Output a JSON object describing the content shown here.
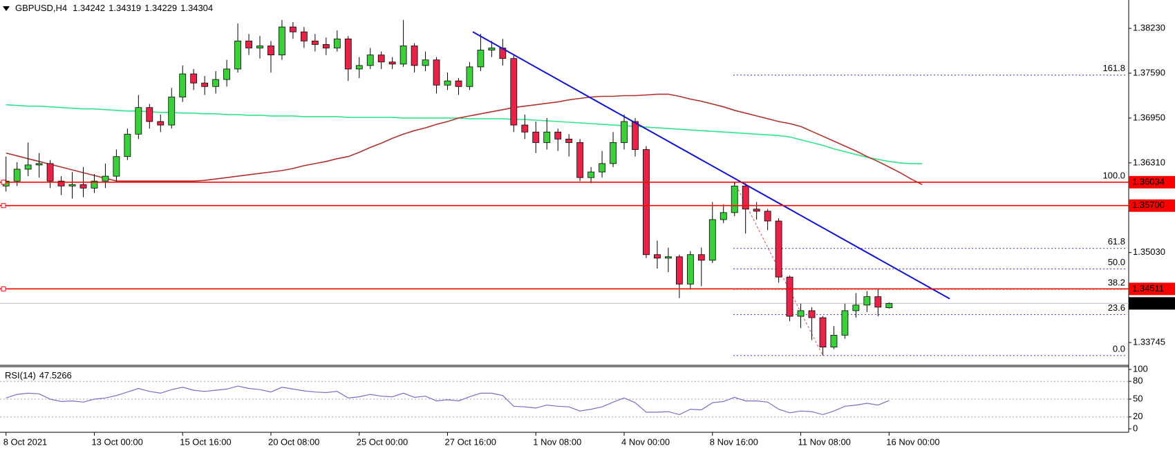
{
  "chart_data": {
    "type": "candlestick",
    "symbol": "GBPUSD,H4",
    "categories": [
      "8 Oct 2021",
      null,
      null,
      null,
      null,
      null,
      null,
      null,
      "13 Oct 00:00",
      null,
      null,
      null,
      null,
      null,
      null,
      null,
      "15 Oct 16:00",
      null,
      null,
      null,
      null,
      null,
      null,
      null,
      "20 Oct 08:00",
      null,
      null,
      null,
      null,
      null,
      null,
      null,
      "25 Oct 00:00",
      null,
      null,
      null,
      null,
      null,
      null,
      null,
      "27 Oct 16:00",
      null,
      null,
      null,
      null,
      null,
      null,
      null,
      "1 Nov 08:00",
      null,
      null,
      null,
      null,
      null,
      null,
      null,
      "4 Nov 00:00",
      null,
      null,
      null,
      null,
      null,
      null,
      null,
      "8 Nov 16:00",
      null,
      null,
      null,
      null,
      null,
      null,
      null,
      "11 Nov 08:00",
      null,
      null,
      null,
      null,
      null,
      null,
      null,
      "16 Nov 00:00",
      null,
      null,
      null
    ],
    "candles": [
      [
        1.3598,
        1.364,
        1.359,
        1.3605
      ],
      [
        1.3605,
        1.3632,
        1.3598,
        1.3622
      ],
      [
        1.3622,
        1.366,
        1.3612,
        1.3628
      ],
      [
        1.3628,
        1.3645,
        1.361,
        1.363
      ],
      [
        1.363,
        1.3635,
        1.3595,
        1.3605
      ],
      [
        1.3605,
        1.3612,
        1.3585,
        1.3598
      ],
      [
        1.3598,
        1.3618,
        1.358,
        1.36
      ],
      [
        1.36,
        1.3625,
        1.3582,
        1.3595
      ],
      [
        1.3595,
        1.3615,
        1.3588,
        1.3605
      ],
      [
        1.3605,
        1.363,
        1.3595,
        1.3612
      ],
      [
        1.3612,
        1.365,
        1.3605,
        1.364
      ],
      [
        1.364,
        1.368,
        1.3635,
        1.3672
      ],
      [
        1.3672,
        1.3728,
        1.3665,
        1.371
      ],
      [
        1.371,
        1.3715,
        1.368,
        1.369
      ],
      [
        1.369,
        1.37,
        1.3675,
        1.3685
      ],
      [
        1.3685,
        1.3738,
        1.368,
        1.3725
      ],
      [
        1.3725,
        1.377,
        1.3718,
        1.3758
      ],
      [
        1.3758,
        1.3765,
        1.3735,
        1.3745
      ],
      [
        1.3745,
        1.3755,
        1.3728,
        1.374
      ],
      [
        1.374,
        1.3762,
        1.373,
        1.375
      ],
      [
        1.375,
        1.3778,
        1.374,
        1.3765
      ],
      [
        1.3765,
        1.383,
        1.376,
        1.3805
      ],
      [
        1.3805,
        1.3815,
        1.3785,
        1.3795
      ],
      [
        1.3795,
        1.3812,
        1.378,
        1.3798
      ],
      [
        1.3798,
        1.3805,
        1.376,
        1.3785
      ],
      [
        1.3785,
        1.3835,
        1.3778,
        1.3825
      ],
      [
        1.3825,
        1.3832,
        1.3808,
        1.3818
      ],
      [
        1.3818,
        1.3825,
        1.3795,
        1.3805
      ],
      [
        1.3805,
        1.3815,
        1.379,
        1.38
      ],
      [
        1.38,
        1.381,
        1.3785,
        1.3795
      ],
      [
        1.3795,
        1.382,
        1.379,
        1.3808
      ],
      [
        1.3808,
        1.3812,
        1.3748,
        1.3765
      ],
      [
        1.3765,
        1.3782,
        1.3752,
        1.377
      ],
      [
        1.377,
        1.3795,
        1.3765,
        1.3785
      ],
      [
        1.3785,
        1.379,
        1.3765,
        1.3775
      ],
      [
        1.3775,
        1.3782,
        1.3765,
        1.3772
      ],
      [
        1.3772,
        1.3835,
        1.3768,
        1.3798
      ],
      [
        1.3798,
        1.3802,
        1.376,
        1.377
      ],
      [
        1.377,
        1.379,
        1.3762,
        1.3778
      ],
      [
        1.3778,
        1.3782,
        1.373,
        1.3742
      ],
      [
        1.3742,
        1.376,
        1.3735,
        1.3748
      ],
      [
        1.3748,
        1.3752,
        1.3728,
        1.374
      ],
      [
        1.374,
        1.3775,
        1.3735,
        1.3768
      ],
      [
        1.3768,
        1.3815,
        1.3762,
        1.3792
      ],
      [
        1.3792,
        1.3805,
        1.3782,
        1.3795
      ],
      [
        1.3795,
        1.3808,
        1.377,
        1.378
      ],
      [
        1.378,
        1.3785,
        1.3675,
        1.3685
      ],
      [
        1.3685,
        1.37,
        1.3665,
        1.3675
      ],
      [
        1.3675,
        1.369,
        1.3645,
        1.366
      ],
      [
        1.366,
        1.3695,
        1.365,
        1.3675
      ],
      [
        1.3675,
        1.368,
        1.3648,
        1.3665
      ],
      [
        1.3665,
        1.3672,
        1.364,
        1.366
      ],
      [
        1.366,
        1.3665,
        1.3605,
        1.361
      ],
      [
        1.361,
        1.3625,
        1.3602,
        1.3618
      ],
      [
        1.3618,
        1.3648,
        1.361,
        1.363
      ],
      [
        1.363,
        1.3675,
        1.3625,
        1.366
      ],
      [
        1.366,
        1.37,
        1.365,
        1.369
      ],
      [
        1.369,
        1.3695,
        1.364,
        1.365
      ],
      [
        1.365,
        1.3655,
        1.3495,
        1.35
      ],
      [
        1.35,
        1.352,
        1.348,
        1.3495
      ],
      [
        1.3495,
        1.351,
        1.3475,
        1.3497
      ],
      [
        1.3497,
        1.35,
        1.3438,
        1.3458
      ],
      [
        1.3458,
        1.3505,
        1.345,
        1.35
      ],
      [
        1.35,
        1.351,
        1.3455,
        1.3492
      ],
      [
        1.3492,
        1.3575,
        1.3488,
        1.355
      ],
      [
        1.355,
        1.3572,
        1.3545,
        1.356
      ],
      [
        1.356,
        1.36034,
        1.3555,
        1.3598
      ],
      [
        1.3598,
        1.3602,
        1.353,
        1.3565
      ],
      [
        1.3565,
        1.3575,
        1.355,
        1.3562
      ],
      [
        1.3562,
        1.3565,
        1.3535,
        1.3548
      ],
      [
        1.3548,
        1.3552,
        1.346,
        1.3468
      ],
      [
        1.3468,
        1.347,
        1.3405,
        1.3412
      ],
      [
        1.3412,
        1.343,
        1.3395,
        1.342
      ],
      [
        1.342,
        1.3425,
        1.3378,
        1.341
      ],
      [
        1.341,
        1.3412,
        1.3356,
        1.3368
      ],
      [
        1.3368,
        1.3398,
        1.3365,
        1.3385
      ],
      [
        1.3385,
        1.343,
        1.338,
        1.342
      ],
      [
        1.342,
        1.3445,
        1.341,
        1.3428
      ],
      [
        1.3428,
        1.3448,
        1.3418,
        1.344
      ],
      [
        1.344,
        1.3452,
        1.3412,
        1.3425
      ],
      [
        1.34242,
        1.34319,
        1.34229,
        1.34304
      ],
      null,
      null,
      null
    ],
    "up_color": "#3ccf3c",
    "down_color": "#e8234a",
    "series": [
      {
        "color": "#2ee68a",
        "values": [
          1.3714,
          1.3713,
          1.3712,
          1.3712,
          1.3711,
          1.371,
          1.3709,
          1.3708,
          1.3708,
          1.3707,
          1.3706,
          1.3705,
          1.3705,
          1.3704,
          1.3703,
          1.3703,
          1.3702,
          1.3702,
          1.3701,
          1.3701,
          1.37,
          1.37,
          1.3699,
          1.3699,
          1.3698,
          1.3698,
          1.3698,
          1.3697,
          1.3697,
          1.3697,
          1.3697,
          1.3696,
          1.3696,
          1.3696,
          1.3696,
          1.3696,
          1.3695,
          1.3695,
          1.3695,
          1.3695,
          1.3695,
          1.3695,
          1.3694,
          1.3694,
          1.3694,
          1.3694,
          1.3693,
          1.3693,
          1.3692,
          1.3691,
          1.369,
          1.3689,
          1.3688,
          1.3687,
          1.3686,
          1.3685,
          1.3684,
          1.3683,
          1.3682,
          1.3681,
          1.368,
          1.3679,
          1.3678,
          1.3677,
          1.3676,
          1.3675,
          1.3674,
          1.3673,
          1.3672,
          1.3671,
          1.367,
          1.3668,
          1.3664,
          1.366,
          1.3656,
          1.3651,
          1.3647,
          1.3643,
          1.3639,
          1.3636,
          1.3633,
          1.3631,
          1.363,
          1.363
        ]
      },
      {
        "color": "#b0302a",
        "values": [
          1.3645,
          1.3641,
          1.3637,
          1.3633,
          1.3629,
          1.3625,
          1.3621,
          1.3617,
          1.3613,
          1.3609,
          1.3605,
          1.3605,
          1.3605,
          1.3605,
          1.3605,
          1.3605,
          1.3605,
          1.3605,
          1.3606,
          1.3608,
          1.361,
          1.3612,
          1.3614,
          1.3616,
          1.3618,
          1.362,
          1.3623,
          1.3627,
          1.363,
          1.3633,
          1.3637,
          1.364,
          1.3646,
          1.3653,
          1.3659,
          1.3666,
          1.3672,
          1.3677,
          1.3681,
          1.3686,
          1.369,
          1.3695,
          1.3698,
          1.3701,
          1.3704,
          1.3707,
          1.371,
          1.3712,
          1.3714,
          1.3716,
          1.3718,
          1.3721,
          1.3723,
          1.3725,
          1.3726,
          1.3726,
          1.3727,
          1.3727,
          1.3728,
          1.3729,
          1.3729,
          1.3726,
          1.3722,
          1.3719,
          1.3715,
          1.3711,
          1.3706,
          1.3702,
          1.3698,
          1.3694,
          1.369,
          1.3687,
          1.3683,
          1.3676,
          1.3669,
          1.3662,
          1.3655,
          1.3648,
          1.364,
          1.3633,
          1.3625,
          1.3617,
          1.3608,
          1.36
        ]
      }
    ],
    "ylim": [
      1.3343,
      1.38635
    ],
    "yticks": [
      {
        "value": 1.3823,
        "label": "1.38230"
      },
      {
        "value": 1.3759,
        "label": "1.37590"
      },
      {
        "value": 1.3695,
        "label": "1.36950"
      },
      {
        "value": 1.3631,
        "label": "1.36310"
      },
      {
        "value": 1.3503,
        "label": "1.35030"
      },
      {
        "value": 1.33745,
        "label": "1.33745"
      }
    ],
    "levels": [
      1.36034,
      {
        "value": 1.357,
        "label": "1.35700"
      },
      1.34511
    ],
    "level_color": "#ff0000",
    "trendline": [
      1.3818,
      1.3437
    ],
    "trendline_color": "#1010d0",
    "fibonacci": {
      "high": 1.36034,
      "low": 1.3356,
      "color": "#3030c0",
      "levels": [
        {
          "value": 161.8,
          "label": "161.8"
        },
        {
          "value": 100,
          "label": "100.0"
        },
        61.8,
        {
          "value": 50,
          "label": "50.0"
        },
        38.2,
        23.6,
        {
          "value": 0,
          "label": "0.0"
        }
      ]
    },
    "rsi": {
      "name": "RSI(14)",
      "color": "#7a6cc8",
      "ylim": [
        0,
        100
      ],
      "yticks": [
        100,
        80,
        50,
        20,
        0
      ],
      "values": [
        52,
        58,
        60,
        59,
        50,
        46,
        47,
        45,
        50,
        52,
        56,
        62,
        68,
        63,
        60,
        66,
        70,
        65,
        63,
        65,
        67,
        72,
        68,
        66,
        62,
        70,
        67,
        64,
        62,
        61,
        63,
        52,
        54,
        58,
        55,
        54,
        60,
        53,
        55,
        47,
        49,
        47,
        54,
        60,
        60,
        56,
        38,
        37,
        35,
        40,
        38,
        37,
        30,
        33,
        37,
        45,
        52,
        44,
        28,
        28,
        29,
        24,
        33,
        32,
        44,
        46,
        53,
        47,
        47,
        45,
        33,
        27,
        30,
        29,
        24,
        30,
        38,
        40,
        43,
        40,
        47.5266,
        null,
        null,
        null
      ]
    }
  }
}
